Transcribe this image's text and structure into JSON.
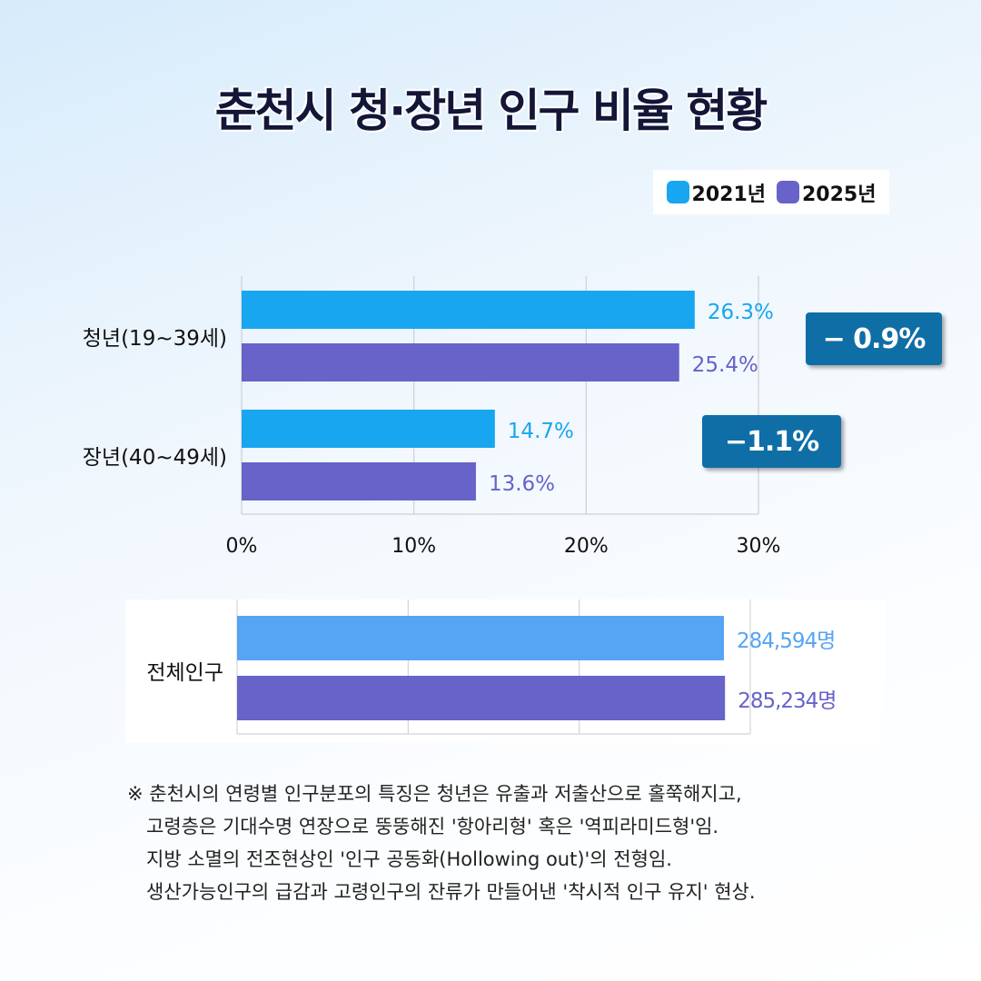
{
  "title": "춘천시 청·장년 인구 비율 현황",
  "legend": [
    {
      "label": "2021년",
      "color": "#17a6ef"
    },
    {
      "label": "2025년",
      "color": "#6763c8"
    }
  ],
  "chart_data": [
    {
      "type": "bar",
      "orientation": "horizontal",
      "categories": [
        "청년(19~39세)",
        "장년(40~49세)"
      ],
      "series": [
        {
          "name": "2021년",
          "values": [
            26.3,
            14.7
          ],
          "labels": [
            "26.3%",
            "14.7%"
          ],
          "color": "#17a6ef"
        },
        {
          "name": "2025년",
          "values": [
            25.4,
            13.6
          ],
          "labels": [
            "25.4%",
            "13.6%"
          ],
          "color": "#6763c8"
        }
      ],
      "xlim": [
        0,
        30
      ],
      "xticks": [
        "0%",
        "10%",
        "20%",
        "30%"
      ],
      "grid": true,
      "annotations": [
        "− 0.9%",
        "−1.1%"
      ],
      "annotation_color": "#0f6ea6"
    },
    {
      "type": "bar",
      "orientation": "horizontal",
      "categories": [
        "전체인구"
      ],
      "series": [
        {
          "name": "2021년",
          "values": [
            284594
          ],
          "labels": [
            "284,594명"
          ],
          "color": "#56a4f4"
        },
        {
          "name": "2025년",
          "values": [
            285234
          ],
          "labels": [
            "285,234명"
          ],
          "color": "#6763c8"
        }
      ],
      "xlim": [
        0,
        300000
      ],
      "grid": true
    }
  ],
  "note": {
    "mark": "※",
    "lines": [
      "춘천시의 연령별 인구분포의 특징은 청년은 유출과 저출산으로 홀쭉해지고,",
      "고령층은 기대수명 연장으로 뚱뚱해진 '항아리형' 혹은 '역피라미드형'임.",
      "지방 소멸의 전조현상인 '인구 공동화(Hollowing out)'의 전형임.",
      "생산가능인구의 급감과 고령인구의 잔류가 만들어낸 '착시적 인구 유지' 현상."
    ]
  }
}
